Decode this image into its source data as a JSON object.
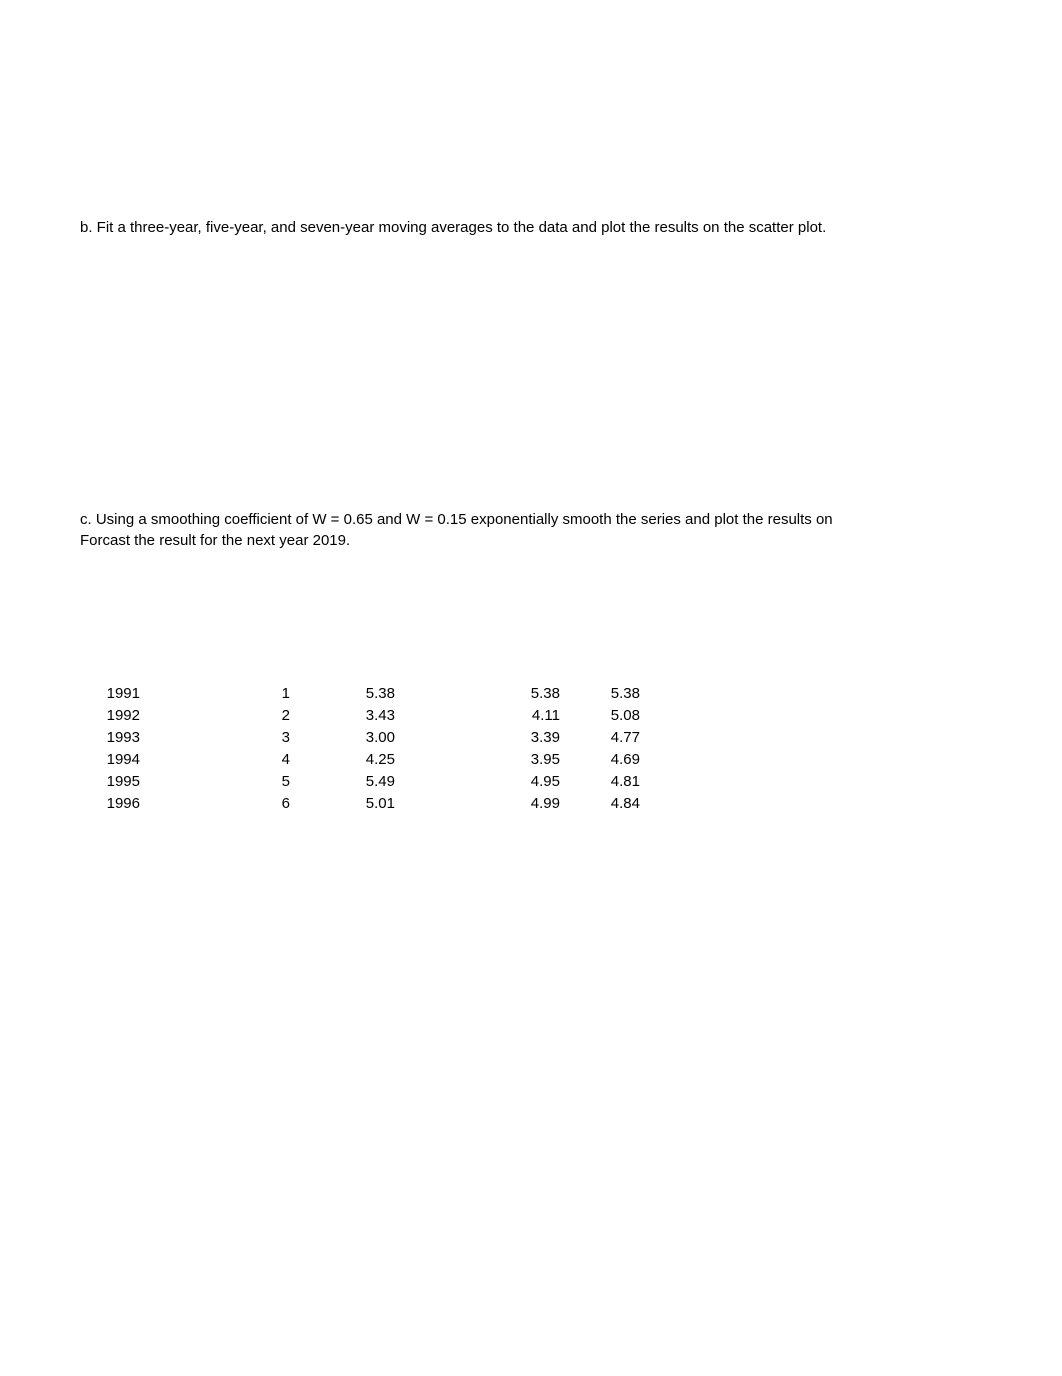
{
  "question_b": "b. Fit a three-year, five-year, and seven-year moving averages to the data and plot the results on the scatter plot.",
  "question_c_line1": "c. Using a smoothing coefficient of W = 0.65 and W = 0.15 exponentially smooth the series and plot the results on",
  "question_c_line2": "Forcast the result for the next year 2019.",
  "table": {
    "type": "table",
    "columns": [
      "year",
      "index",
      "value",
      "smooth_065",
      "smooth_015"
    ],
    "col_alignment": [
      "right",
      "right",
      "right",
      "right",
      "right"
    ],
    "font_size": 15,
    "text_color": "#000000",
    "background_color": "#ffffff",
    "rows": [
      {
        "year": "1991",
        "index": "1",
        "value": "5.38",
        "smooth_065": "5.38",
        "smooth_015": "5.38"
      },
      {
        "year": "1992",
        "index": "2",
        "value": "3.43",
        "smooth_065": "4.11",
        "smooth_015": "5.08"
      },
      {
        "year": "1993",
        "index": "3",
        "value": "3.00",
        "smooth_065": "3.39",
        "smooth_015": "4.77"
      },
      {
        "year": "1994",
        "index": "4",
        "value": "4.25",
        "smooth_065": "3.95",
        "smooth_015": "4.69"
      },
      {
        "year": "1995",
        "index": "5",
        "value": "5.49",
        "smooth_065": "4.95",
        "smooth_015": "4.81"
      },
      {
        "year": "1996",
        "index": "6",
        "value": "5.01",
        "smooth_065": "4.99",
        "smooth_015": "4.84"
      }
    ]
  }
}
